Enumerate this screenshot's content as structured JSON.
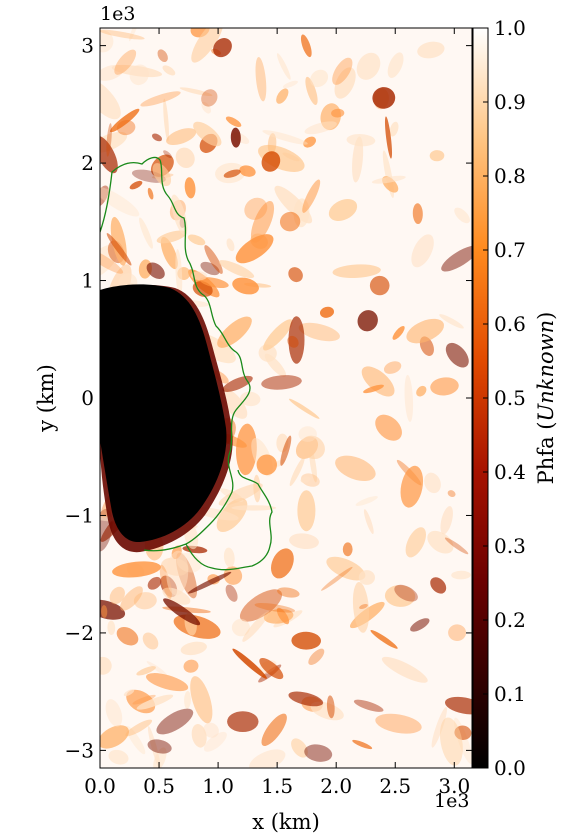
{
  "chart_data": {
    "type": "heatmap",
    "colormap": "gist_heat",
    "x": {
      "label": "x  (km)",
      "multiplier": "1e3",
      "range": [
        0,
        3.15
      ],
      "ticks": [
        0.0,
        0.5,
        1.0,
        1.5,
        2.0,
        2.5,
        3.0
      ],
      "tick_labels": [
        "0.0",
        "0.5",
        "1.0",
        "1.5",
        "2.0",
        "2.5",
        "3.0"
      ]
    },
    "y": {
      "label": "y  (km)",
      "multiplier": "1e3",
      "range": [
        -3.15,
        3.15
      ],
      "ticks": [
        -3,
        -2,
        -1,
        0,
        1,
        2,
        3
      ],
      "tick_labels": [
        "−3",
        "−2",
        "−1",
        "0",
        "1",
        "2",
        "3"
      ]
    },
    "colorbar": {
      "label_main": "Phfa",
      "label_unit": "Unknown",
      "range": [
        0.0,
        1.0
      ],
      "ticks": [
        0.0,
        0.1,
        0.2,
        0.3,
        0.4,
        0.5,
        0.6,
        0.7,
        0.8,
        0.9,
        1.0
      ],
      "tick_labels": [
        "0.0",
        "0.1",
        "0.2",
        "0.3",
        "0.4",
        "0.5",
        "0.6",
        "0.7",
        "0.8",
        "0.9",
        "1.0"
      ]
    },
    "features": {
      "low_region_value": 0.0,
      "low_region_extent_x": [
        0.0,
        1.1
      ],
      "low_region_extent_y": [
        -1.35,
        0.95
      ],
      "contour_color": "#1a8a1a",
      "background_value": 0.95
    }
  }
}
